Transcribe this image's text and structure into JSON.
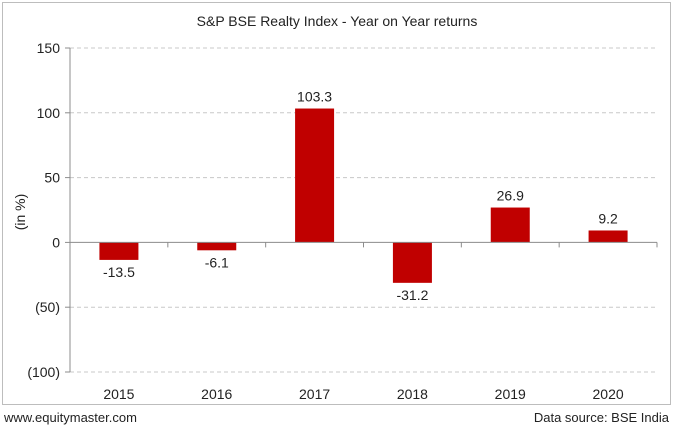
{
  "footer": {
    "website": "www.equitymaster.com",
    "source": "Data source: BSE India"
  },
  "colors": {
    "bar": "#c00000",
    "grid": "#c8c8c8",
    "axis": "#8c8c8c",
    "text": "#222222"
  },
  "chart_data": {
    "type": "bar",
    "title": "S&P BSE Realty Index - Year on Year returns",
    "xlabel": "",
    "ylabel": "(in %)",
    "categories": [
      "2015",
      "2016",
      "2017",
      "2018",
      "2019",
      "2020"
    ],
    "values": [
      -13.5,
      -6.1,
      103.3,
      -31.2,
      26.9,
      9.2
    ],
    "data_labels": [
      "-13.5",
      "-6.1",
      "103.3",
      "-31.2",
      "26.9",
      "9.2"
    ],
    "ylim": [
      -100,
      150
    ],
    "yticks": [
      150,
      100,
      50,
      0,
      -50,
      -100
    ],
    "ytick_labels": [
      "150",
      "100",
      "50",
      "0",
      "(50)",
      "(100)"
    ],
    "grid": true,
    "legend": "none"
  }
}
